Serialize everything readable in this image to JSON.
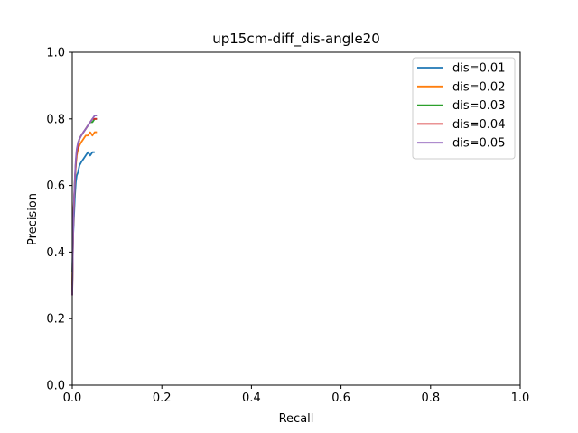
{
  "chart_data": {
    "type": "line",
    "title": "up15cm-diff_dis-angle20",
    "xlabel": "Recall",
    "ylabel": "Precision",
    "xlim": [
      0,
      1
    ],
    "ylim": [
      0,
      1
    ],
    "xticks": [
      "0.0",
      "0.2",
      "0.4",
      "0.6",
      "0.8",
      "1.0"
    ],
    "yticks": [
      "0.0",
      "0.2",
      "0.4",
      "0.6",
      "0.8",
      "1.0"
    ],
    "grid": false,
    "legend_position": "top-right",
    "series": [
      {
        "name": "dis=0.01",
        "color": "#1f77b4",
        "x": [
          0.0,
          0.002,
          0.004,
          0.006,
          0.008,
          0.01,
          0.013,
          0.016,
          0.02,
          0.025,
          0.03,
          0.035,
          0.04,
          0.045,
          0.05
        ],
        "y": [
          0.34,
          0.45,
          0.51,
          0.57,
          0.61,
          0.63,
          0.64,
          0.66,
          0.67,
          0.68,
          0.69,
          0.7,
          0.69,
          0.7,
          0.7
        ]
      },
      {
        "name": "dis=0.02",
        "color": "#ff7f0e",
        "x": [
          0.0,
          0.002,
          0.004,
          0.006,
          0.008,
          0.01,
          0.013,
          0.016,
          0.02,
          0.025,
          0.03,
          0.035,
          0.04,
          0.045,
          0.05,
          0.055
        ],
        "y": [
          0.3,
          0.48,
          0.56,
          0.62,
          0.66,
          0.69,
          0.71,
          0.72,
          0.73,
          0.74,
          0.75,
          0.75,
          0.76,
          0.75,
          0.76,
          0.76
        ]
      },
      {
        "name": "dis=0.03",
        "color": "#2ca02c",
        "x": [
          0.0,
          0.002,
          0.004,
          0.006,
          0.008,
          0.01,
          0.013,
          0.016,
          0.02,
          0.025,
          0.03,
          0.035,
          0.04,
          0.045,
          0.05,
          0.055
        ],
        "y": [
          0.28,
          0.47,
          0.55,
          0.62,
          0.67,
          0.7,
          0.72,
          0.74,
          0.75,
          0.76,
          0.77,
          0.78,
          0.79,
          0.79,
          0.8,
          0.8
        ]
      },
      {
        "name": "dis=0.04",
        "color": "#d62728",
        "x": [
          0.0,
          0.002,
          0.004,
          0.006,
          0.008,
          0.01,
          0.013,
          0.016,
          0.02,
          0.025,
          0.03,
          0.035,
          0.04,
          0.045,
          0.05,
          0.055
        ],
        "y": [
          0.27,
          0.46,
          0.55,
          0.62,
          0.67,
          0.7,
          0.72,
          0.74,
          0.75,
          0.76,
          0.77,
          0.78,
          0.79,
          0.8,
          0.8,
          0.8
        ]
      },
      {
        "name": "dis=0.05",
        "color": "#9467bd",
        "x": [
          0.0,
          0.002,
          0.004,
          0.006,
          0.008,
          0.01,
          0.013,
          0.016,
          0.02,
          0.025,
          0.03,
          0.035,
          0.04,
          0.045,
          0.05,
          0.055
        ],
        "y": [
          0.27,
          0.46,
          0.56,
          0.63,
          0.68,
          0.71,
          0.73,
          0.74,
          0.75,
          0.76,
          0.77,
          0.78,
          0.79,
          0.8,
          0.81,
          0.81
        ]
      }
    ]
  }
}
